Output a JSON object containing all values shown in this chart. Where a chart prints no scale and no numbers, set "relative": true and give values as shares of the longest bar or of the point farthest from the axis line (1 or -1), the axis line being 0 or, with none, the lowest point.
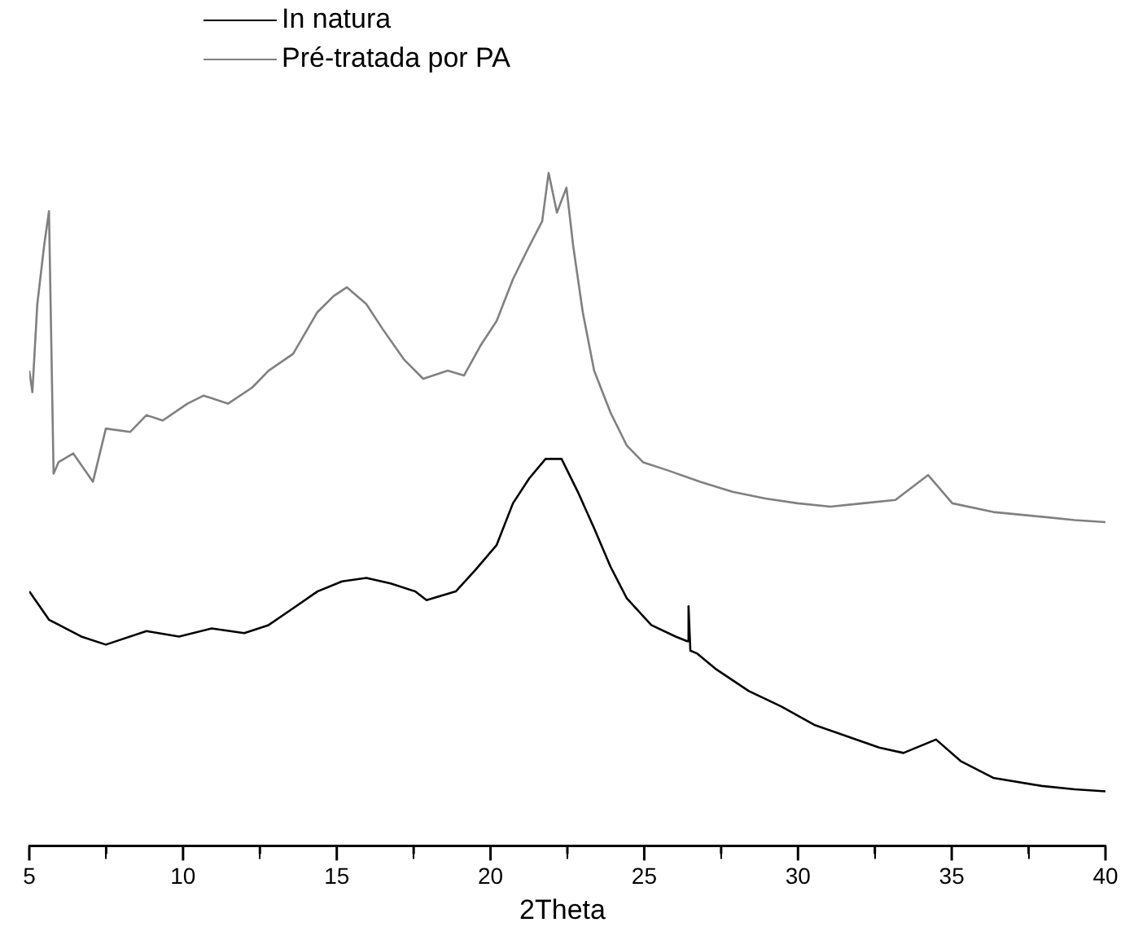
{
  "chart_data": {
    "type": "line",
    "relative": true,
    "xlabel": "2Theta",
    "xlim": [
      5,
      40
    ],
    "xticks": [
      5,
      {
        "value": 7.5,
        "label": null
      },
      10,
      {
        "value": 12.5,
        "label": null
      },
      15,
      {
        "value": 17.5,
        "label": null
      },
      20,
      {
        "value": 22.5,
        "label": null
      },
      25,
      {
        "value": 27.5,
        "label": null
      },
      30,
      {
        "value": 32.5,
        "label": null
      },
      35,
      {
        "value": 37.5,
        "label": null
      },
      40
    ],
    "legend": "top",
    "grid": false,
    "marker": "none",
    "line_style": "solid",
    "series": [
      {
        "name": "In natura",
        "color": "#000000",
        "x": [
          5.0,
          5.64,
          6.69,
          7.49,
          8.81,
          9.87,
          10.93,
          11.99,
          12.78,
          13.58,
          14.37,
          15.17,
          15.96,
          16.75,
          17.55,
          17.92,
          18.87,
          19.51,
          20.2,
          20.73,
          21.26,
          21.79,
          22.31,
          22.84,
          23.37,
          23.9,
          24.43,
          25.23,
          26.02,
          26.4,
          26.44,
          26.5,
          26.71,
          27.35,
          28.4,
          29.46,
          30.52,
          31.58,
          32.64,
          33.43,
          34.49,
          35.29,
          36.35,
          37.93,
          39.0,
          40.0
        ],
        "values": [
          0.378,
          0.336,
          0.311,
          0.299,
          0.319,
          0.311,
          0.323,
          0.316,
          0.328,
          0.353,
          0.378,
          0.393,
          0.398,
          0.39,
          0.378,
          0.365,
          0.378,
          0.41,
          0.447,
          0.509,
          0.546,
          0.575,
          0.575,
          0.526,
          0.472,
          0.415,
          0.368,
          0.328,
          0.311,
          0.304,
          0.356,
          0.29,
          0.286,
          0.262,
          0.23,
          0.207,
          0.18,
          0.163,
          0.146,
          0.138,
          0.158,
          0.126,
          0.101,
          0.089,
          0.084,
          0.081
        ]
      },
      {
        "name": "Pré-tratada por PA",
        "color": "#808080",
        "x": [
          5.0,
          5.1,
          5.26,
          5.48,
          5.64,
          5.79,
          5.95,
          6.43,
          7.07,
          7.49,
          8.28,
          8.81,
          9.34,
          10.14,
          10.67,
          11.46,
          12.25,
          12.78,
          13.58,
          14.37,
          14.9,
          15.33,
          15.96,
          16.49,
          17.18,
          17.81,
          18.61,
          19.14,
          19.67,
          20.2,
          20.73,
          21.26,
          21.68,
          21.89,
          22.16,
          22.47,
          22.69,
          23.0,
          23.37,
          23.9,
          24.43,
          24.96,
          25.76,
          26.82,
          27.87,
          28.94,
          29.99,
          31.05,
          32.11,
          33.17,
          34.23,
          35.02,
          36.35,
          37.93,
          39.0,
          40.0
        ],
        "values": [
          0.706,
          0.674,
          0.805,
          0.891,
          0.943,
          0.553,
          0.57,
          0.583,
          0.541,
          0.62,
          0.615,
          0.64,
          0.632,
          0.657,
          0.669,
          0.657,
          0.681,
          0.706,
          0.731,
          0.793,
          0.817,
          0.83,
          0.805,
          0.768,
          0.723,
          0.694,
          0.706,
          0.699,
          0.743,
          0.78,
          0.842,
          0.891,
          0.928,
          1.0,
          0.941,
          0.978,
          0.891,
          0.793,
          0.706,
          0.644,
          0.595,
          0.57,
          0.558,
          0.541,
          0.526,
          0.516,
          0.509,
          0.504,
          0.509,
          0.514,
          0.551,
          0.509,
          0.496,
          0.489,
          0.484,
          0.481
        ]
      }
    ]
  }
}
